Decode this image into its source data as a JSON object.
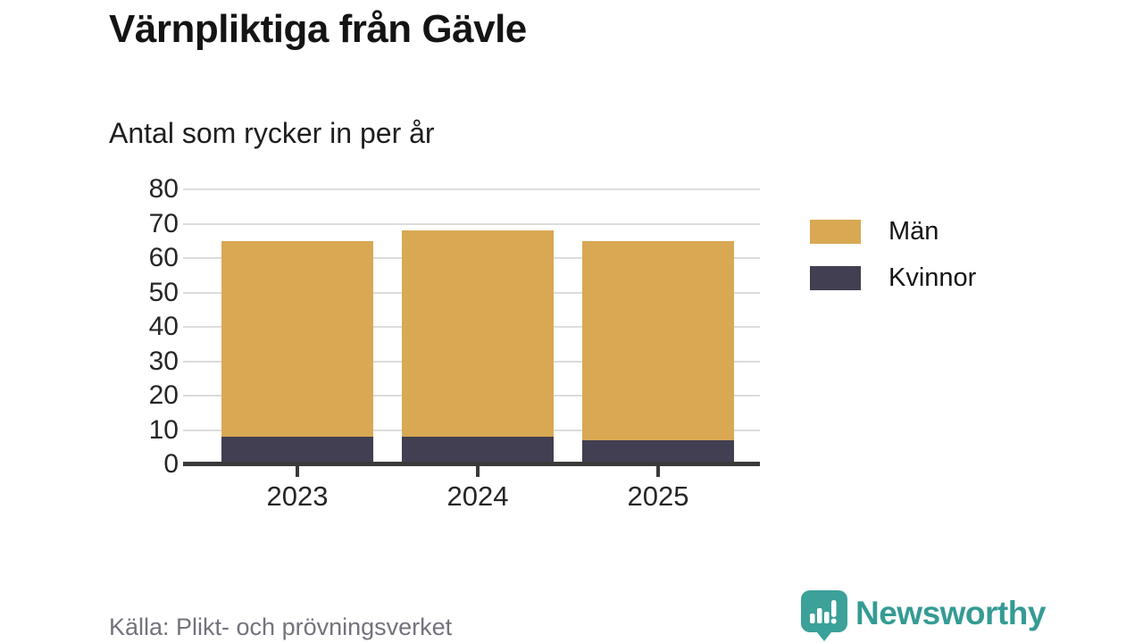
{
  "header": {
    "title": "Värnpliktiga från Gävle",
    "subtitle": "Antal som rycker in per år"
  },
  "chart_data": {
    "type": "bar",
    "stacked": true,
    "title": "Värnpliktiga från Gävle",
    "subtitle": "Antal som rycker in per år",
    "categories": [
      "2023",
      "2024",
      "2025"
    ],
    "series": [
      {
        "name": "Män",
        "values": [
          57,
          60,
          58
        ],
        "color": "#d9a853"
      },
      {
        "name": "Kvinnor",
        "values": [
          8,
          8,
          7
        ],
        "color": "#413f51"
      }
    ],
    "totals": [
      65,
      68,
      65
    ],
    "xlabel": "",
    "ylabel": "",
    "ylim": [
      0,
      80
    ],
    "yticks": [
      0,
      10,
      20,
      30,
      40,
      50,
      60,
      70,
      80
    ],
    "grid": true,
    "gridline_color": "#dcdcdc",
    "axis_color": "#3a3a3a",
    "legend_position": "right"
  },
  "footer": {
    "source": "Källa: Plikt- och prövningsverket",
    "brand": "Newsworthy",
    "brand_color": "#359b94"
  }
}
